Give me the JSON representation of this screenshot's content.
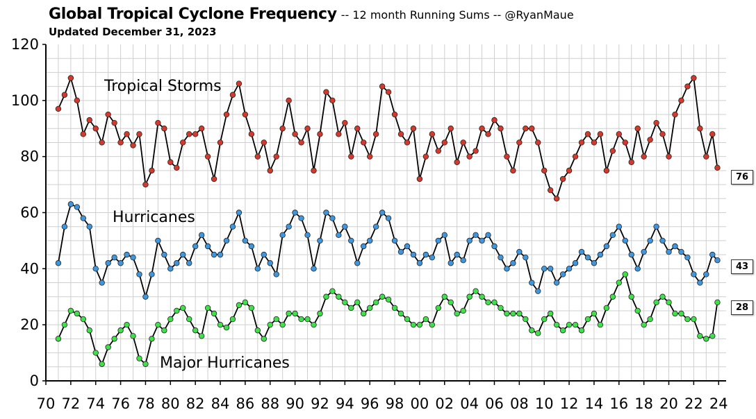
{
  "chart_data": {
    "type": "line",
    "title": "Global Tropical Cyclone Frequency",
    "subtitle": "-- 12 month Running Sums -- @RyanMaue",
    "updated": "Updated December 31, 2023",
    "xlabel": "",
    "ylabel": "",
    "xlim": [
      1970,
      2024.6
    ],
    "ylim": [
      0,
      120
    ],
    "ytick_labels": [
      "0",
      "20",
      "40",
      "60",
      "80",
      "100",
      "120"
    ],
    "xtick_labels": [
      "70",
      "72",
      "74",
      "76",
      "78",
      "80",
      "82",
      "84",
      "86",
      "88",
      "90",
      "92",
      "94",
      "96",
      "98",
      "00",
      "02",
      "04",
      "06",
      "08",
      "10",
      "12",
      "14",
      "16",
      "18",
      "20",
      "22",
      "24"
    ],
    "grid": true,
    "series": [
      {
        "name": "Tropical Storms",
        "color": "#d43a2c",
        "last_value": "76",
        "x": [
          1971.0,
          1971.5,
          1972.0,
          1972.5,
          1973.0,
          1973.5,
          1974.0,
          1974.5,
          1975.0,
          1975.5,
          1976.0,
          1976.5,
          1977.0,
          1977.5,
          1978.0,
          1978.5,
          1979.0,
          1979.5,
          1980.0,
          1980.5,
          1981.0,
          1981.5,
          1982.0,
          1982.5,
          1983.0,
          1983.5,
          1984.0,
          1984.5,
          1985.0,
          1985.5,
          1986.0,
          1986.5,
          1987.0,
          1987.5,
          1988.0,
          1988.5,
          1989.0,
          1989.5,
          1990.0,
          1990.5,
          1991.0,
          1991.5,
          1992.0,
          1992.5,
          1993.0,
          1993.5,
          1994.0,
          1994.5,
          1995.0,
          1995.5,
          1996.0,
          1996.5,
          1997.0,
          1997.5,
          1998.0,
          1998.5,
          1999.0,
          1999.5,
          2000.0,
          2000.5,
          2001.0,
          2001.5,
          2002.0,
          2002.5,
          2003.0,
          2003.5,
          2004.0,
          2004.5,
          2005.0,
          2005.5,
          2006.0,
          2006.5,
          2007.0,
          2007.5,
          2008.0,
          2008.5,
          2009.0,
          2009.5,
          2010.0,
          2010.5,
          2011.0,
          2011.5,
          2012.0,
          2012.5,
          2013.0,
          2013.5,
          2014.0,
          2014.5,
          2015.0,
          2015.5,
          2016.0,
          2016.5,
          2017.0,
          2017.5,
          2018.0,
          2018.5,
          2019.0,
          2019.5,
          2020.0,
          2020.5,
          2021.0,
          2021.5,
          2022.0,
          2022.5,
          2023.0,
          2023.5,
          2023.9
        ],
        "values": [
          97,
          102,
          108,
          100,
          88,
          93,
          90,
          85,
          95,
          92,
          85,
          88,
          84,
          88,
          70,
          75,
          92,
          90,
          78,
          76,
          85,
          88,
          88,
          90,
          80,
          72,
          85,
          95,
          102,
          106,
          95,
          88,
          80,
          85,
          75,
          80,
          90,
          100,
          88,
          85,
          90,
          75,
          88,
          103,
          100,
          88,
          92,
          80,
          90,
          85,
          80,
          88,
          105,
          103,
          95,
          88,
          85,
          90,
          72,
          80,
          88,
          82,
          85,
          90,
          78,
          85,
          80,
          82,
          90,
          88,
          93,
          90,
          80,
          75,
          85,
          90,
          90,
          85,
          75,
          68,
          65,
          72,
          75,
          80,
          85,
          88,
          85,
          88,
          75,
          82,
          88,
          85,
          78,
          90,
          80,
          86,
          92,
          88,
          80,
          95,
          100,
          105,
          108,
          90,
          80,
          88,
          76
        ]
      },
      {
        "name": "Hurricanes",
        "color": "#3f96dc",
        "last_value": "43",
        "x": [
          1971.0,
          1971.5,
          1972.0,
          1972.5,
          1973.0,
          1973.5,
          1974.0,
          1974.5,
          1975.0,
          1975.5,
          1976.0,
          1976.5,
          1977.0,
          1977.5,
          1978.0,
          1978.5,
          1979.0,
          1979.5,
          1980.0,
          1980.5,
          1981.0,
          1981.5,
          1982.0,
          1982.5,
          1983.0,
          1983.5,
          1984.0,
          1984.5,
          1985.0,
          1985.5,
          1986.0,
          1986.5,
          1987.0,
          1987.5,
          1988.0,
          1988.5,
          1989.0,
          1989.5,
          1990.0,
          1990.5,
          1991.0,
          1991.5,
          1992.0,
          1992.5,
          1993.0,
          1993.5,
          1994.0,
          1994.5,
          1995.0,
          1995.5,
          1996.0,
          1996.5,
          1997.0,
          1997.5,
          1998.0,
          1998.5,
          1999.0,
          1999.5,
          2000.0,
          2000.5,
          2001.0,
          2001.5,
          2002.0,
          2002.5,
          2003.0,
          2003.5,
          2004.0,
          2004.5,
          2005.0,
          2005.5,
          2006.0,
          2006.5,
          2007.0,
          2007.5,
          2008.0,
          2008.5,
          2009.0,
          2009.5,
          2010.0,
          2010.5,
          2011.0,
          2011.5,
          2012.0,
          2012.5,
          2013.0,
          2013.5,
          2014.0,
          2014.5,
          2015.0,
          2015.5,
          2016.0,
          2016.5,
          2017.0,
          2017.5,
          2018.0,
          2018.5,
          2019.0,
          2019.5,
          2020.0,
          2020.5,
          2021.0,
          2021.5,
          2022.0,
          2022.5,
          2023.0,
          2023.5,
          2023.9
        ],
        "values": [
          42,
          55,
          63,
          62,
          58,
          55,
          40,
          35,
          42,
          44,
          42,
          45,
          44,
          38,
          30,
          38,
          50,
          45,
          40,
          42,
          45,
          42,
          48,
          52,
          48,
          45,
          45,
          50,
          55,
          60,
          50,
          48,
          40,
          45,
          42,
          38,
          52,
          55,
          60,
          58,
          52,
          40,
          50,
          60,
          58,
          52,
          55,
          50,
          42,
          48,
          50,
          55,
          60,
          58,
          50,
          46,
          48,
          45,
          42,
          45,
          44,
          50,
          52,
          42,
          45,
          43,
          50,
          52,
          50,
          52,
          48,
          44,
          40,
          42,
          46,
          44,
          35,
          32,
          40,
          40,
          35,
          38,
          40,
          42,
          46,
          44,
          42,
          45,
          48,
          52,
          55,
          50,
          45,
          40,
          46,
          50,
          55,
          50,
          46,
          48,
          46,
          44,
          38,
          35,
          38,
          45,
          43
        ]
      },
      {
        "name": "Major Hurricanes",
        "color": "#3fe04a",
        "last_value": "28",
        "x": [
          1971.0,
          1971.5,
          1972.0,
          1972.5,
          1973.0,
          1973.5,
          1974.0,
          1974.5,
          1975.0,
          1975.5,
          1976.0,
          1976.5,
          1977.0,
          1977.5,
          1978.0,
          1978.5,
          1979.0,
          1979.5,
          1980.0,
          1980.5,
          1981.0,
          1981.5,
          1982.0,
          1982.5,
          1983.0,
          1983.5,
          1984.0,
          1984.5,
          1985.0,
          1985.5,
          1986.0,
          1986.5,
          1987.0,
          1987.5,
          1988.0,
          1988.5,
          1989.0,
          1989.5,
          1990.0,
          1990.5,
          1991.0,
          1991.5,
          1992.0,
          1992.5,
          1993.0,
          1993.5,
          1994.0,
          1994.5,
          1995.0,
          1995.5,
          1996.0,
          1996.5,
          1997.0,
          1997.5,
          1998.0,
          1998.5,
          1999.0,
          1999.5,
          2000.0,
          2000.5,
          2001.0,
          2001.5,
          2002.0,
          2002.5,
          2003.0,
          2003.5,
          2004.0,
          2004.5,
          2005.0,
          2005.5,
          2006.0,
          2006.5,
          2007.0,
          2007.5,
          2008.0,
          2008.5,
          2009.0,
          2009.5,
          2010.0,
          2010.5,
          2011.0,
          2011.5,
          2012.0,
          2012.5,
          2013.0,
          2013.5,
          2014.0,
          2014.5,
          2015.0,
          2015.5,
          2016.0,
          2016.5,
          2017.0,
          2017.5,
          2018.0,
          2018.5,
          2019.0,
          2019.5,
          2020.0,
          2020.5,
          2021.0,
          2021.5,
          2022.0,
          2022.5,
          2023.0,
          2023.5,
          2023.9
        ],
        "values": [
          15,
          20,
          25,
          24,
          22,
          18,
          10,
          6,
          12,
          15,
          18,
          20,
          16,
          8,
          6,
          15,
          20,
          18,
          22,
          25,
          26,
          22,
          18,
          16,
          26,
          24,
          20,
          19,
          22,
          27,
          28,
          26,
          18,
          15,
          20,
          22,
          20,
          24,
          24,
          22,
          22,
          20,
          24,
          30,
          32,
          30,
          28,
          26,
          28,
          24,
          26,
          28,
          30,
          29,
          26,
          24,
          22,
          20,
          20,
          22,
          20,
          26,
          30,
          28,
          24,
          25,
          30,
          32,
          30,
          28,
          28,
          26,
          24,
          24,
          24,
          22,
          18,
          17,
          22,
          24,
          20,
          18,
          20,
          20,
          18,
          22,
          24,
          20,
          26,
          30,
          35,
          38,
          30,
          25,
          20,
          22,
          28,
          30,
          28,
          24,
          24,
          22,
          22,
          16,
          15,
          16,
          28
        ]
      }
    ]
  }
}
